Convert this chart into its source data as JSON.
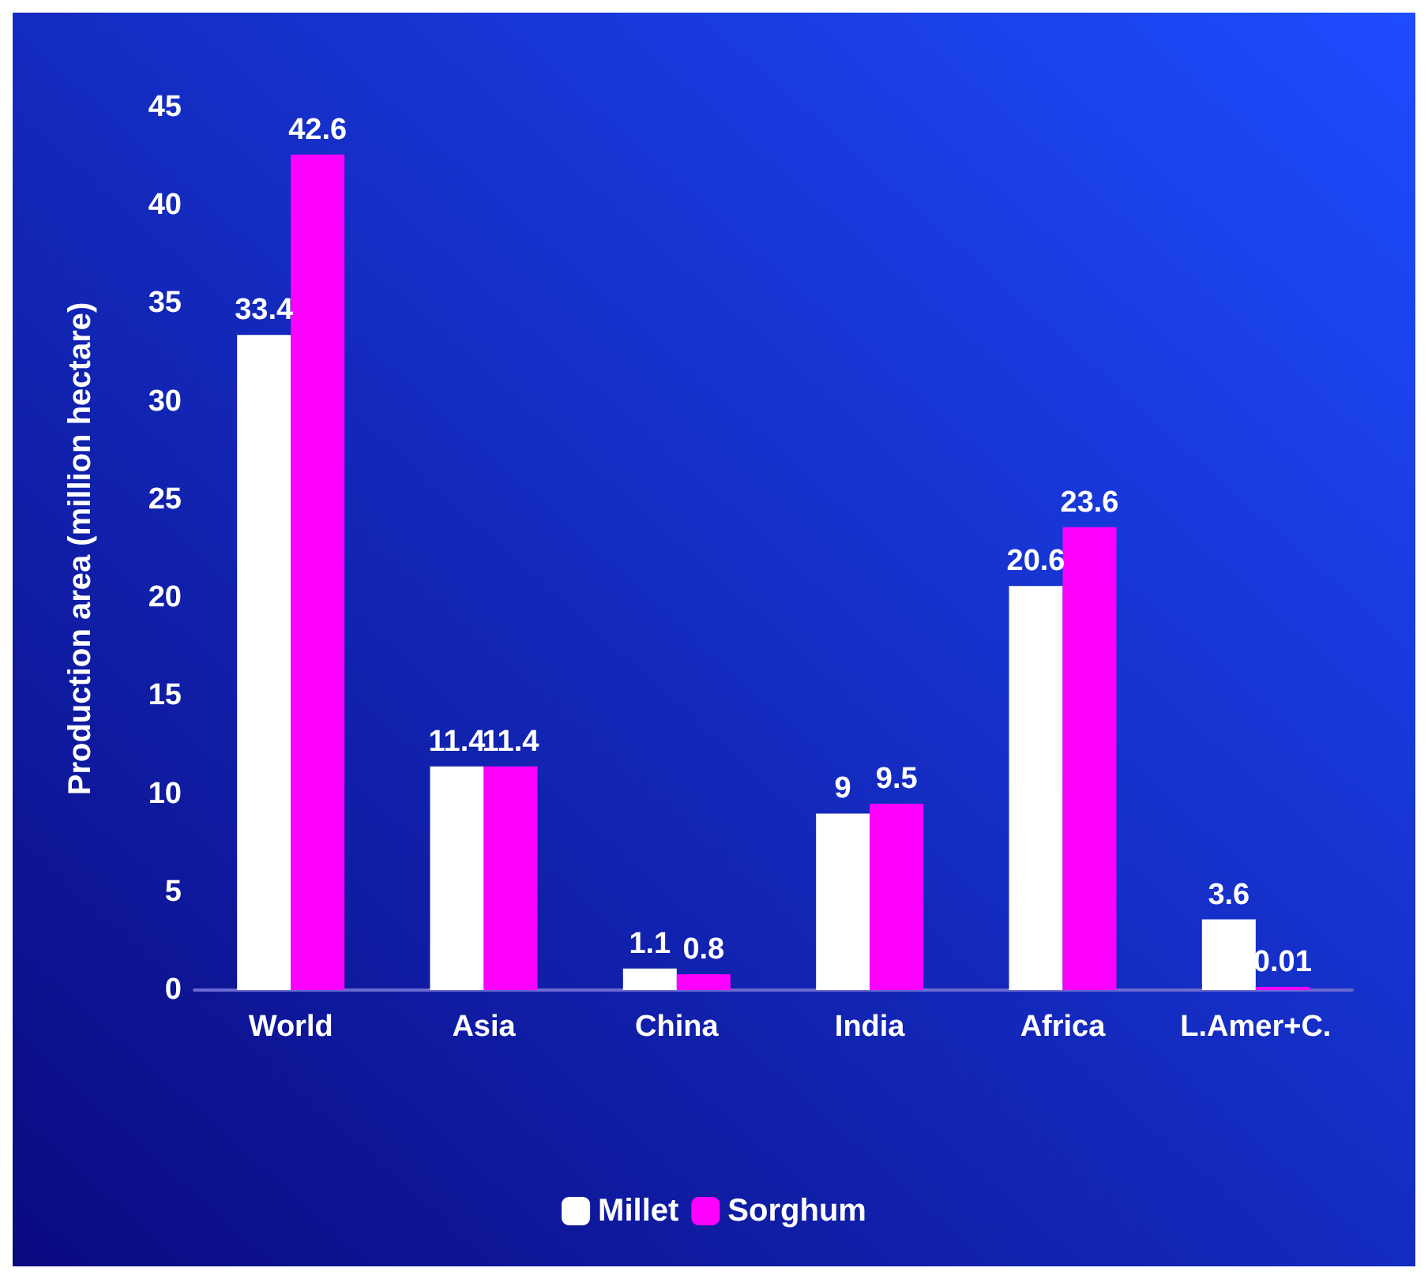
{
  "chart_data": {
    "type": "bar",
    "ylabel": "Production area (million hectare)",
    "categories": [
      "World",
      "Asia",
      "China",
      "India",
      "Africa",
      "L.Amer+C."
    ],
    "series": [
      {
        "name": "Millet",
        "color": "#ffffff",
        "values": [
          33.4,
          11.4,
          1.1,
          9,
          20.6,
          3.6
        ]
      },
      {
        "name": "Sorghum",
        "color": "#ff00ff",
        "values": [
          42.6,
          11.4,
          0.8,
          9.5,
          23.6,
          0.01
        ]
      }
    ],
    "ylim": [
      0,
      45
    ],
    "yticks": [
      0,
      5,
      10,
      15,
      20,
      25,
      30,
      35,
      40,
      45
    ],
    "data_labels": true,
    "legend": "bottom",
    "grid": false
  }
}
